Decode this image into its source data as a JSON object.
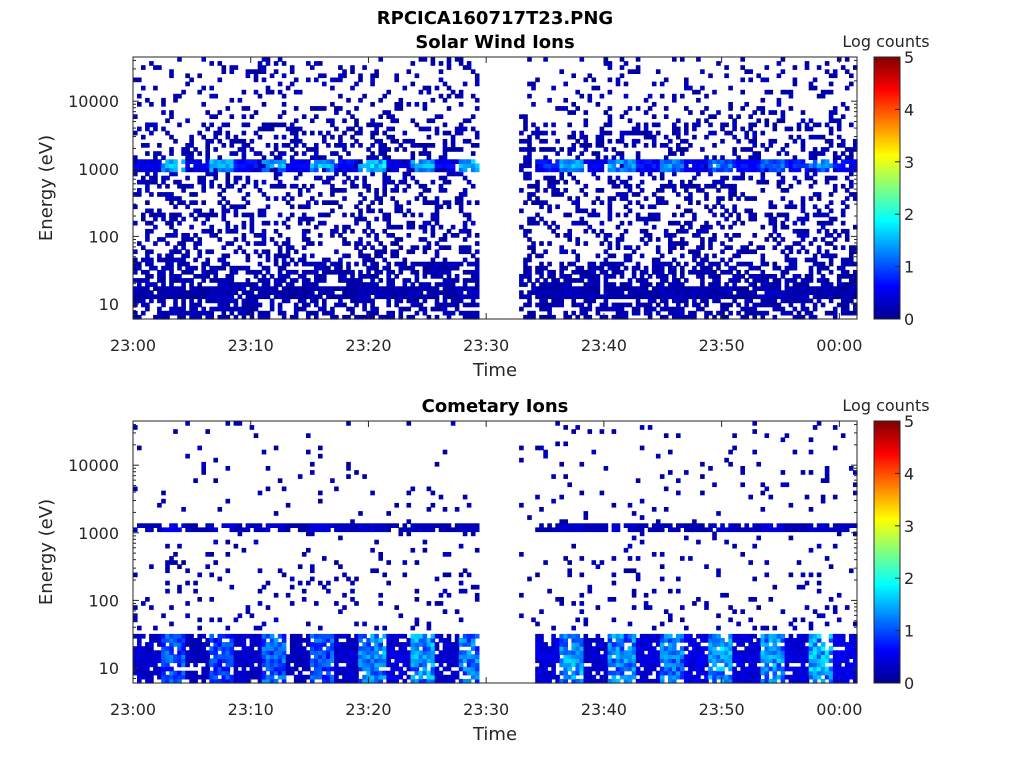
{
  "figure": {
    "title": "RPCICA160717T23.PNG"
  },
  "colorbar": {
    "label": "Log counts",
    "ticks": [
      "0",
      "1",
      "2",
      "3",
      "4",
      "5"
    ],
    "stops": [
      "#00008f",
      "#0000ff",
      "#0080ff",
      "#00ffff",
      "#80ff80",
      "#ffff00",
      "#ff8000",
      "#ff0000",
      "#800000"
    ]
  },
  "chart_data": [
    {
      "type": "heatmap",
      "title": "Solar Wind Ions",
      "xlabel": "Time",
      "ylabel": "Energy (eV)",
      "x_ticks": [
        "23:00",
        "23:10",
        "23:20",
        "23:30",
        "23:40",
        "23:50",
        "00:00"
      ],
      "y_ticks": [
        "10",
        "100",
        "1000",
        "10000"
      ],
      "yscale": "log",
      "ylim": [
        6,
        45000
      ],
      "xlim_minutes": [
        0,
        61.5
      ],
      "data_gap_minutes": [
        29.5,
        32.5
      ],
      "clim": [
        0,
        5
      ],
      "colorbar_label": "Log counts",
      "series": [
        {
          "name": "peak near 1100 eV",
          "energy_eV": 1150,
          "log_counts": [
            0.6,
            1.8,
            0.6,
            1.8,
            0.8,
            1.6,
            0.7,
            1.7,
            0.8,
            1.9,
            0.6,
            1.7,
            0.7,
            1.8,
            0,
            0,
            0.9,
            1.7,
            0.7,
            1.6,
            0.8,
            1.5,
            0.7,
            1.4,
            0.8,
            1.3,
            0.9,
            1.5,
            0.8
          ]
        },
        {
          "name": "low energy (10-30 eV)",
          "energy_eV": 15,
          "log_counts": [
            0.1,
            0.2,
            0.1,
            0.3,
            0.1,
            0.2,
            0.1,
            0.2,
            0.1,
            0.3,
            0.2,
            0.2,
            0.1,
            0.3,
            0,
            0,
            0.2,
            0.3,
            0.1,
            0.2,
            0.1,
            0.3,
            0.2,
            0.2,
            0.1,
            0.3,
            0.2,
            0.2,
            0.1
          ]
        }
      ]
    },
    {
      "type": "heatmap",
      "title": "Cometary Ions",
      "xlabel": "Time",
      "ylabel": "Energy (eV)",
      "x_ticks": [
        "23:00",
        "23:10",
        "23:20",
        "23:30",
        "23:40",
        "23:50",
        "00:00"
      ],
      "y_ticks": [
        "10",
        "100",
        "1000",
        "10000"
      ],
      "yscale": "log",
      "ylim": [
        6,
        45000
      ],
      "xlim_minutes": [
        0,
        61.5
      ],
      "data_gap_minutes": [
        29.5,
        32.5
      ],
      "clim": [
        0,
        5
      ],
      "colorbar_label": "Log counts",
      "series": [
        {
          "name": "low energy (10-30 eV)",
          "energy_eV": 15,
          "log_counts": [
            0.4,
            1.2,
            0.3,
            1.1,
            0.4,
            1.3,
            0.3,
            1.2,
            0.4,
            1.5,
            0.5,
            1.6,
            0.4,
            1.4,
            0,
            0,
            0.5,
            1.6,
            0.4,
            1.5,
            0.5,
            1.4,
            0.6,
            1.7,
            0.5,
            1.6,
            0.5,
            1.7,
            0.6
          ]
        },
        {
          "name": "near 1200 eV",
          "energy_eV": 1200,
          "log_counts": [
            0.3,
            0.6,
            0.2,
            0.5,
            0.3,
            0.4,
            0.2,
            0.5,
            0.3,
            0.4,
            0.2,
            0.3,
            0.2,
            0.3,
            0,
            0,
            0.2,
            0.4,
            0.3,
            0.4,
            0.2,
            0.3,
            0.2,
            0.4,
            0.3,
            0.5,
            0.2,
            0.4,
            0.3
          ]
        }
      ]
    }
  ]
}
